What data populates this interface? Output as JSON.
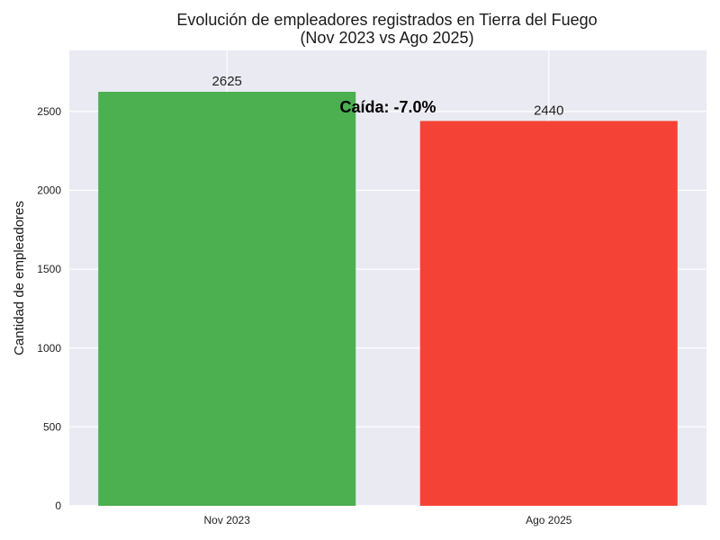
{
  "chart_data": {
    "type": "bar",
    "title": "Evolución de empleadores registrados en Tierra del Fuego",
    "subtitle": "(Nov 2023 vs Ago 2025)",
    "xlabel": "",
    "ylabel": "Cantidad de empleadores",
    "categories": [
      "Nov 2023",
      "Ago 2025"
    ],
    "values": [
      2625,
      2440
    ],
    "value_labels": [
      "2625",
      "2440"
    ],
    "bar_colors": [
      "#4caf50",
      "#f44336"
    ],
    "ylim": [
      0,
      2887.5
    ],
    "yticks": [
      0,
      500,
      1000,
      1500,
      2000,
      2500
    ],
    "ytick_labels": [
      "0",
      "500",
      "1000",
      "1500",
      "2000",
      "2500"
    ],
    "grid": true,
    "annotation": "Caída: -7.0%",
    "colors": {
      "plot_background": "#eaeaf2",
      "grid": "#ffffff"
    }
  }
}
